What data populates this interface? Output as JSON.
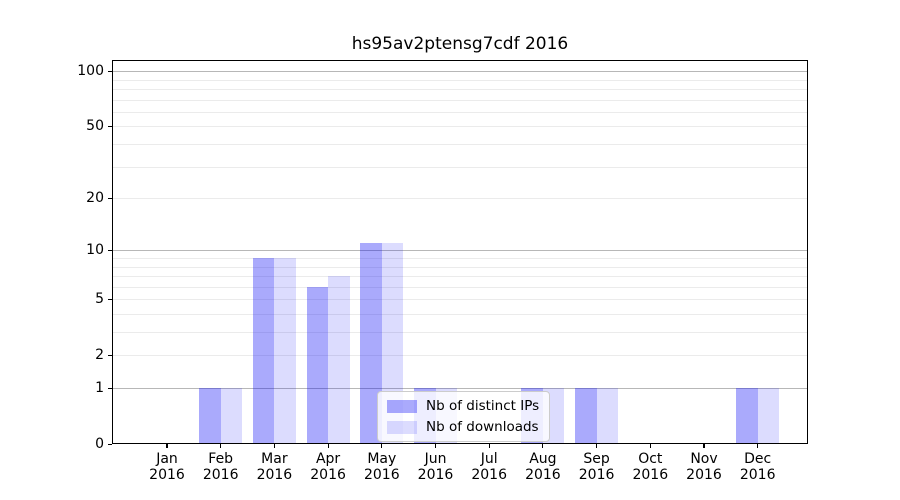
{
  "chart_data": {
    "type": "bar",
    "title": "hs95av2ptensg7cdf 2016",
    "months": [
      "Jan",
      "Feb",
      "Mar",
      "Apr",
      "May",
      "Jun",
      "Jul",
      "Aug",
      "Sep",
      "Oct",
      "Nov",
      "Dec"
    ],
    "year": "2016",
    "series": [
      {
        "name": "Nb of distinct IPs",
        "color": "#0505f5",
        "opacity": 0.34,
        "values": [
          0,
          1,
          9,
          6,
          11,
          1,
          0,
          1,
          1,
          0,
          0,
          1
        ]
      },
      {
        "name": "Nb of downloads",
        "color": "#0505f5",
        "opacity": 0.14,
        "values": [
          0,
          1,
          9,
          7,
          11,
          1,
          0,
          1,
          1,
          0,
          0,
          1
        ]
      }
    ],
    "y_scale": "log1p",
    "ylim": [
      0,
      115
    ],
    "y_tick_labels": [
      0,
      1,
      2,
      5,
      10,
      20,
      50,
      100
    ],
    "y_major_gridlines": [
      1,
      10,
      100
    ],
    "y_minor_gridlines": [
      2,
      3,
      4,
      5,
      6,
      7,
      8,
      9,
      20,
      30,
      40,
      50,
      60,
      70,
      80,
      90
    ],
    "legend_position": "lower center-right inside plot",
    "grid": "on"
  },
  "colors": {
    "background": "#ffffff",
    "axis": "#000000",
    "text": "#000000",
    "major_grid": "#b7b7b7",
    "minor_grid": "#ebebeb",
    "legend_border": "#cccccc",
    "legend_background": "#ffffff"
  }
}
